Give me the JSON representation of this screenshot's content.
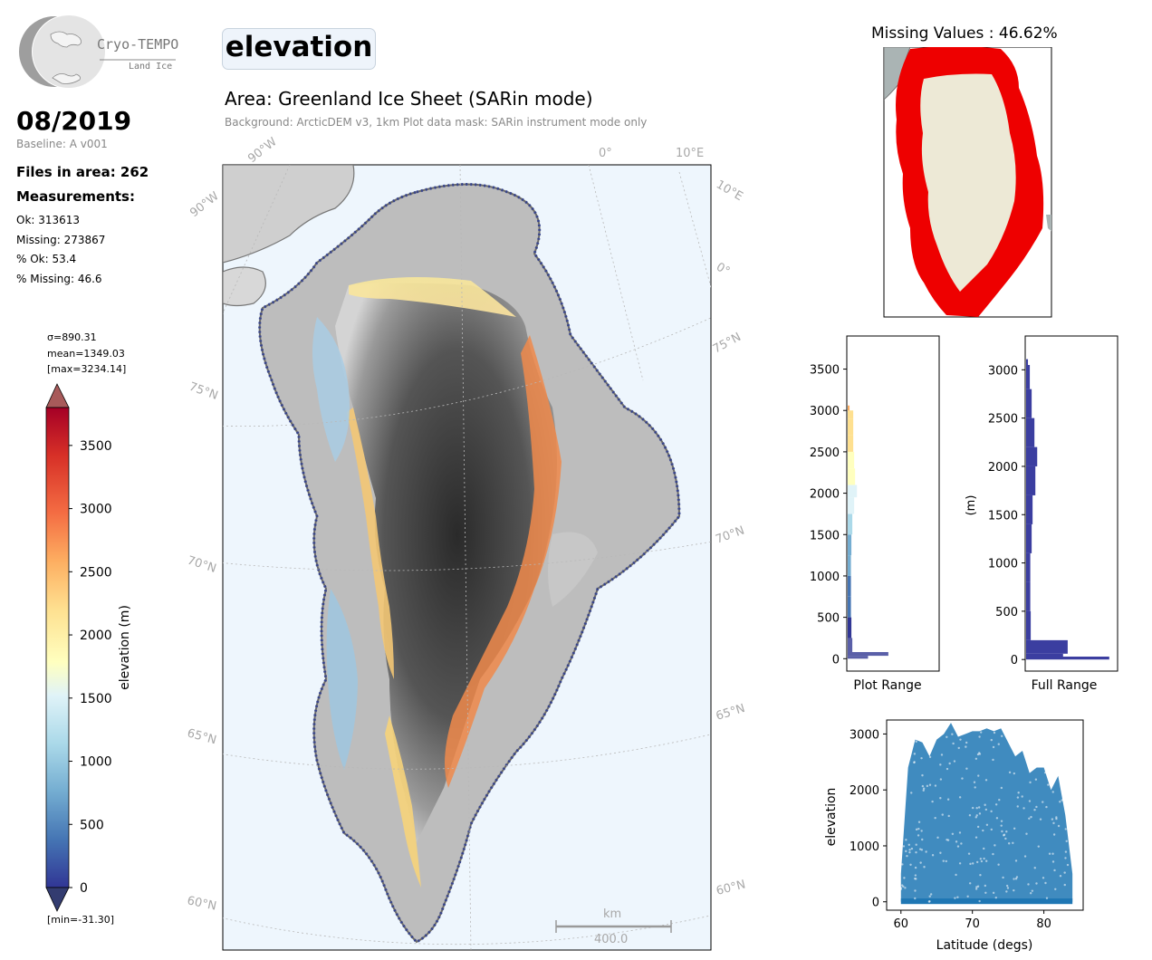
{
  "logo": {
    "name": "Cryo-TEMPO",
    "sub": "Land Ice"
  },
  "header": {
    "date": "08/2019",
    "baseline": "Baseline: A v001",
    "files": "Files in area: 262",
    "measurements_title": "Measurements:",
    "ok": "Ok: 313613",
    "missing": "Missing: 273867",
    "pct_ok": "% Ok: 53.4",
    "pct_missing": "% Missing: 46.6"
  },
  "parameter_badge": "elevation",
  "area": {
    "title": "Area: Greenland Ice Sheet (SARin mode)",
    "subtitle": "Background: ArcticDEM v3, 1km   Plot data mask: SARin instrument mode only"
  },
  "colorbar": {
    "stats": [
      "σ=890.31",
      "mean=1349.03",
      "[max=3234.14]"
    ],
    "min_label": "[min=-31.30]",
    "label": "elevation (m)",
    "ticks": [
      "3500",
      "3000",
      "2500",
      "2000",
      "1500",
      "1000",
      "500",
      "0"
    ],
    "range": [
      0,
      3800
    ]
  },
  "map": {
    "lon_labels": [
      "90°W",
      "0°",
      "10°E",
      "90°W",
      "10°E",
      "0°"
    ],
    "lat_labels_left": [
      "75°N",
      "70°N",
      "65°N",
      "60°N"
    ],
    "lat_labels_right": [
      "75°N",
      "70°N",
      "65°N",
      "60°N"
    ],
    "scale_unit": "km",
    "scale_value": "400.0"
  },
  "missing_map": {
    "title": "Missing Values : 46.62%"
  },
  "chart_data": [
    {
      "type": "bar",
      "orientation": "horizontal histogram",
      "xlabel": "Plot Range",
      "ylabel": "",
      "ylim": [
        -150,
        3900
      ],
      "yticks": [
        0,
        500,
        1000,
        1500,
        2000,
        2500,
        3000,
        3500
      ],
      "bins": [
        {
          "y": 0,
          "count": 0.22
        },
        {
          "y": 35,
          "count": 0.44
        },
        {
          "y": 80,
          "count": 0.05
        },
        {
          "y": 250,
          "count": 0.04
        },
        {
          "y": 500,
          "count": 0.035
        },
        {
          "y": 750,
          "count": 0.035
        },
        {
          "y": 1000,
          "count": 0.035
        },
        {
          "y": 1250,
          "count": 0.04
        },
        {
          "y": 1500,
          "count": 0.05
        },
        {
          "y": 1750,
          "count": 0.07
        },
        {
          "y": 1950,
          "count": 0.1
        },
        {
          "y": 2100,
          "count": 0.08
        },
        {
          "y": 2300,
          "count": 0.07
        },
        {
          "y": 2500,
          "count": 0.06
        },
        {
          "y": 2700,
          "count": 0.06
        },
        {
          "y": 2900,
          "count": 0.06
        },
        {
          "y": 3000,
          "count": 0.02
        }
      ]
    },
    {
      "type": "bar",
      "orientation": "horizontal histogram",
      "xlabel": "Full Range",
      "ylabel": "(m)",
      "ylim": [
        -120,
        3350
      ],
      "yticks": [
        0,
        500,
        1000,
        1500,
        2000,
        2500,
        3000
      ],
      "bins": [
        {
          "y": 0,
          "count": 0.9
        },
        {
          "y": 30,
          "count": 0.4
        },
        {
          "y": 60,
          "count": 0.45
        },
        {
          "y": 200,
          "count": 0.05
        },
        {
          "y": 500,
          "count": 0.045
        },
        {
          "y": 800,
          "count": 0.045
        },
        {
          "y": 1100,
          "count": 0.06
        },
        {
          "y": 1400,
          "count": 0.07
        },
        {
          "y": 1700,
          "count": 0.1
        },
        {
          "y": 2000,
          "count": 0.12
        },
        {
          "y": 2200,
          "count": 0.09
        },
        {
          "y": 2500,
          "count": 0.06
        },
        {
          "y": 2800,
          "count": 0.04
        },
        {
          "y": 3050,
          "count": 0.02
        }
      ]
    },
    {
      "type": "scatter",
      "xlabel": "Latitude (degs)",
      "ylabel": "elevation",
      "xlim": [
        58,
        85.5
      ],
      "ylim": [
        -150,
        3250
      ],
      "xticks": [
        60,
        70,
        80
      ],
      "yticks": [
        0,
        1000,
        2000,
        3000
      ],
      "color": "#1f77b4",
      "envelope_max": [
        [
          60,
          500
        ],
        [
          61,
          2400
        ],
        [
          62,
          2900
        ],
        [
          63,
          2850
        ],
        [
          64,
          2600
        ],
        [
          65,
          2900
        ],
        [
          66,
          3000
        ],
        [
          67,
          3200
        ],
        [
          68,
          2950
        ],
        [
          69,
          3000
        ],
        [
          70,
          3050
        ],
        [
          71,
          3050
        ],
        [
          72,
          3100
        ],
        [
          73,
          3050
        ],
        [
          74,
          3100
        ],
        [
          75,
          2850
        ],
        [
          76,
          2600
        ],
        [
          77,
          2700
        ],
        [
          78,
          2300
        ],
        [
          79,
          2400
        ],
        [
          80,
          2400
        ],
        [
          81,
          2000
        ],
        [
          82,
          2250
        ],
        [
          83,
          1550
        ],
        [
          84,
          500
        ]
      ],
      "envelope_min": [
        [
          60,
          0
        ],
        [
          62,
          0
        ],
        [
          64,
          0
        ],
        [
          66,
          0
        ],
        [
          68,
          0
        ],
        [
          70,
          0
        ],
        [
          72,
          0
        ],
        [
          74,
          0
        ],
        [
          76,
          0
        ],
        [
          78,
          0
        ],
        [
          80,
          0
        ],
        [
          82,
          0
        ],
        [
          84,
          0
        ]
      ]
    }
  ]
}
